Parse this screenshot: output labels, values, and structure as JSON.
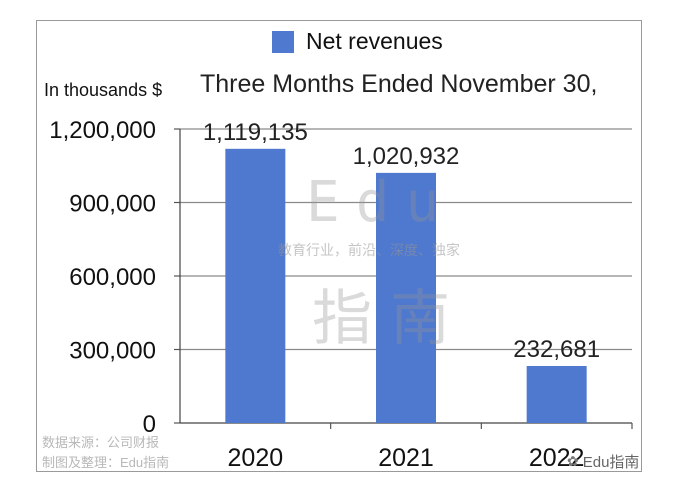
{
  "chart_data": {
    "type": "bar",
    "title": "Three Months Ended November 30,",
    "ylabel": "In thousands $",
    "xlabel": "",
    "categories": [
      "2020",
      "2021",
      "2022"
    ],
    "series": [
      {
        "name": "Net revenues",
        "values": [
          1119135,
          1020932,
          232681
        ],
        "labels": [
          "1,119,135",
          "1,020,932",
          "232,681"
        ]
      }
    ],
    "ylim": [
      0,
      1200000
    ],
    "yticks": [
      0,
      300000,
      600000,
      900000,
      1200000
    ],
    "ytick_labels": [
      "0",
      "300,000",
      "600,000",
      "900,000",
      "1,200,000"
    ],
    "grid": true,
    "legend_position": "top",
    "bar_color": "#4f78cf"
  },
  "source_notes": [
    "数据来源：公司财报",
    "制图及整理：Edu指南"
  ],
  "watermark": {
    "brand": "Edu",
    "tagline": "教育行业，前沿、深度、独家",
    "cn": "指南"
  },
  "brand_badge": {
    "icon": "wechat-icon",
    "label": "Edu指南"
  }
}
